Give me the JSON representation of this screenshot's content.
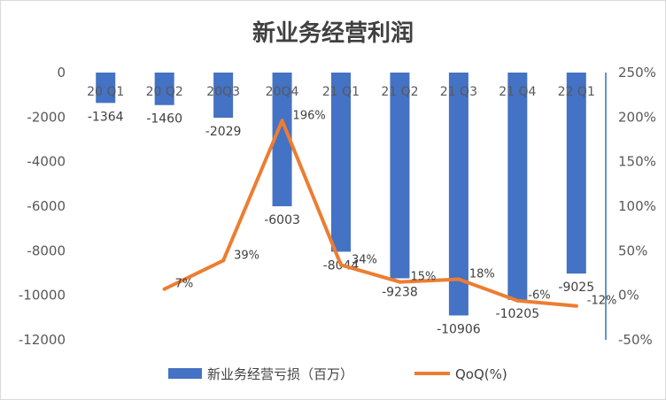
{
  "chart_data": {
    "type": "bar",
    "title": "新业务经营利润",
    "categories": [
      "20 Q1",
      "20 Q2",
      "20Q3",
      "20Q4",
      "21 Q1",
      "21 Q2",
      "21 Q3",
      "21 Q4",
      "22 Q1"
    ],
    "series": [
      {
        "name": "新业务经营亏损（百万）",
        "type": "bar",
        "axis": "left",
        "color": "#4472C4",
        "values": [
          -1364,
          -1460,
          -2029,
          -6003,
          -8044,
          -9238,
          -10906,
          -10205,
          -9025
        ],
        "labels": [
          "-1364",
          "-1460",
          "-2029",
          "-6003",
          "-8044",
          "-9238",
          "-10906",
          "-10205",
          "-9025"
        ]
      },
      {
        "name": "QoQ(%)",
        "type": "line",
        "axis": "right",
        "color": "#ED7D31",
        "values": [
          null,
          7,
          39,
          196,
          34,
          15,
          18,
          -6,
          -12
        ],
        "labels": [
          "",
          "7%",
          "39%",
          "196%",
          "34%",
          "15%",
          "18%",
          "-6%",
          "-12%"
        ]
      }
    ],
    "yleft": {
      "lim": [
        -12000,
        0
      ],
      "ticks": [
        "0",
        "-2000",
        "-4000",
        "-6000",
        "-8000",
        "-10000",
        "-12000"
      ]
    },
    "yright": {
      "lim": [
        -50,
        250
      ],
      "ticks": [
        "250%",
        "200%",
        "150%",
        "100%",
        "50%",
        "0%",
        "-50%"
      ]
    },
    "grid": false,
    "legend": "bottom"
  }
}
